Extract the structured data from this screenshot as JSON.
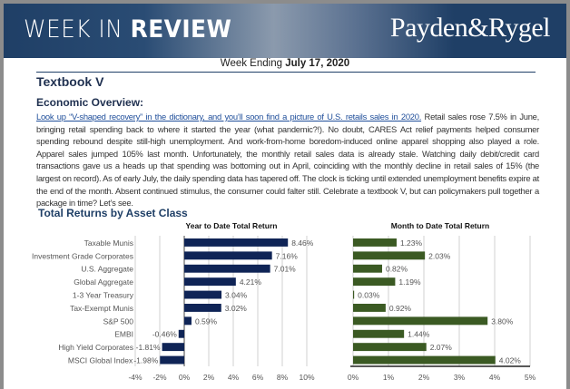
{
  "header": {
    "title_light": "WEEK IN",
    "title_bold": "REVIEW",
    "logo": "Payden&Rygel"
  },
  "week": {
    "prefix": "Week Ending",
    "date": "July 17, 2020"
  },
  "title": "Textbook V",
  "section": "Economic Overview:",
  "paragraph": {
    "link": "Look up “V-shaped recovery” in the dictionary, and you’ll soon find a picture of U.S. retails sales in 2020.",
    "text": " Retail sales rose 7.5% in June, bringing retail spending back to where it started the year (what pandemic?!). No doubt, CARES Act relief payments helped consumer spending rebound despite still-high unemployment. And work-from-home boredom-induced online apparel shopping also played a role. Apparel sales jumped 105% last month. Unfortunately, the monthly retail sales data is already stale. Watching daily debit/credit card transactions gave us a heads up that spending was bottoming out in April, coinciding with the monthly decline in retail sales of 15% (the largest on record). As of early July, the daily spending data has tapered off. The clock is ticking until extended unemployment benefits expire at the end of the month. Absent continued stimulus, the consumer could falter still. Celebrate a textbook V, but can policymakers pull together a package in time? Let’s see."
  },
  "charts_heading": "Total Returns by Asset Class",
  "chart_data": [
    {
      "type": "bar",
      "orientation": "horizontal",
      "title": "Year to Date Total Return",
      "categories": [
        "Taxable Munis",
        "Investment Grade Corporates",
        "U.S. Aggregate",
        "Global Aggregate",
        "1-3 Year Treasury",
        "Tax-Exempt Munis",
        "S&P 500",
        "EMBI",
        "High Yield Corporates",
        "MSCI Global Index"
      ],
      "values": [
        8.46,
        7.16,
        7.01,
        4.21,
        3.04,
        3.02,
        0.59,
        -0.46,
        -1.81,
        -1.98
      ],
      "labels": [
        "8.46%",
        "7.16%",
        "7.01%",
        "4.21%",
        "3.04%",
        "3.02%",
        "0.59%",
        "-0.46%",
        "-1.81%",
        "-1.98%"
      ],
      "xlim": [
        -4,
        10
      ],
      "ticks": [
        "-4%",
        "-2%",
        "0%",
        "2%",
        "4%",
        "6%",
        "8%",
        "10%"
      ],
      "color": "#0f2456",
      "grid": true
    },
    {
      "type": "bar",
      "orientation": "horizontal",
      "title": "Month to Date Total Return",
      "categories": [
        "Taxable Munis",
        "Investment Grade Corporates",
        "U.S. Aggregate",
        "Global Aggregate",
        "1-3 Year Treasury",
        "Tax-Exempt Munis",
        "S&P 500",
        "EMBI",
        "High Yield Corporates",
        "MSCI Global Index"
      ],
      "values": [
        1.23,
        2.03,
        0.82,
        1.19,
        0.03,
        0.92,
        3.8,
        1.44,
        2.07,
        4.02
      ],
      "labels": [
        "1.23%",
        "2.03%",
        "0.82%",
        "1.19%",
        "0.03%",
        "0.92%",
        "3.80%",
        "1.44%",
        "2.07%",
        "4.02%"
      ],
      "xlim": [
        0,
        5
      ],
      "ticks": [
        "0%",
        "1%",
        "2%",
        "3%",
        "4%",
        "5%"
      ],
      "color": "#3b5a23",
      "grid": true
    }
  ]
}
